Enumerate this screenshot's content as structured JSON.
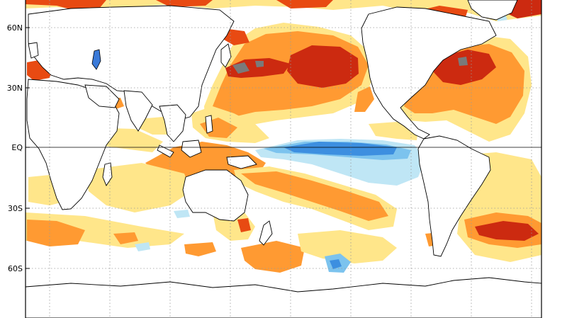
{
  "map": {
    "lat_labels": [
      "60N",
      "30N",
      "EQ",
      "30S",
      "60S"
    ],
    "colors": {
      "ocean": "#ffffff",
      "land": "#ffffff",
      "coast": "#000000",
      "grid": "#888888",
      "warm_1": "#ffe68a",
      "warm_2": "#ff9a32",
      "warm_3": "#e84a12",
      "warm_4": "#cc2a10",
      "warm_5": "#7a7a7a",
      "cool_1": "#bfe6f5",
      "cool_2": "#7cc3ee",
      "cool_3": "#3d8fe0",
      "lake": "#3b7ad8"
    },
    "features": [
      "north-pacific-warm-anomaly",
      "north-atlantic-warm-anomaly",
      "maritime-continent-warm-anomaly",
      "equatorial-pacific-cool-tongue",
      "south-pacific-warm-band",
      "south-atlantic-warm-anomaly",
      "southern-ocean-warm-patches",
      "southern-ocean-cool-spot"
    ]
  }
}
